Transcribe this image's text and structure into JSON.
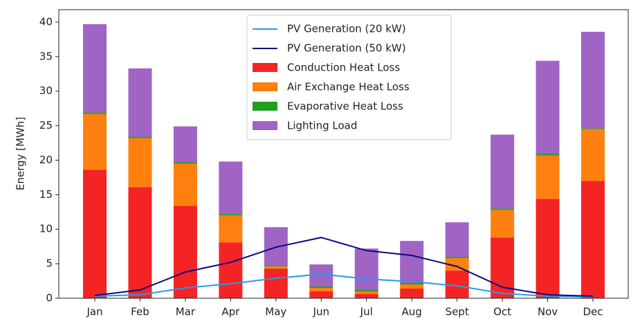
{
  "chart_data": {
    "type": "bar",
    "stacked": true,
    "y_label": "Energy [MWh]",
    "categories": [
      "Jan",
      "Feb",
      "Mar",
      "Apr",
      "May",
      "Jun",
      "Jul",
      "Aug",
      "Sept",
      "Oct",
      "Nov",
      "Dec"
    ],
    "series": [
      {
        "name": "PV Generation (20 kW)",
        "type": "line",
        "color": "#1e9cf0",
        "values": [
          0.3,
          0.5,
          1.5,
          2.1,
          2.9,
          3.5,
          2.8,
          2.4,
          1.8,
          0.7,
          0.3,
          0.2
        ]
      },
      {
        "name": "PV Generation (50 kW)",
        "type": "line",
        "color": "#0a0a80",
        "values": [
          0.4,
          1.2,
          3.8,
          5.2,
          7.4,
          8.8,
          6.9,
          6.2,
          4.6,
          1.6,
          0.5,
          0.3
        ]
      },
      {
        "name": "Conduction Heat Loss",
        "type": "bar",
        "color": "#f42424",
        "values": [
          18.6,
          16.1,
          13.4,
          8.1,
          4.3,
          1.0,
          0.6,
          1.4,
          4.0,
          8.8,
          14.4,
          17.0
        ]
      },
      {
        "name": "Air Exchange Heat Loss",
        "type": "bar",
        "color": "#ff800e",
        "values": [
          8.1,
          7.1,
          6.1,
          3.9,
          0.3,
          0.5,
          0.4,
          0.6,
          1.8,
          4.0,
          6.3,
          7.5
        ]
      },
      {
        "name": "Evaporative Heat Loss",
        "type": "bar",
        "color": "#1f9e1f",
        "values": [
          0.2,
          0.2,
          0.2,
          0.2,
          0.1,
          0.2,
          0.2,
          0.2,
          0.2,
          0.2,
          0.2,
          0.1
        ]
      },
      {
        "name": "Lighting Load",
        "type": "bar",
        "color": "#a064c4",
        "values": [
          12.8,
          9.9,
          5.2,
          7.6,
          5.6,
          3.2,
          6.0,
          6.1,
          5.0,
          10.7,
          13.5,
          14.0
        ]
      }
    ],
    "ylim": [
      0,
      41.8
    ],
    "yticks": [
      0,
      5,
      10,
      15,
      20,
      25,
      30,
      35,
      40
    ],
    "legend": "upper center"
  }
}
